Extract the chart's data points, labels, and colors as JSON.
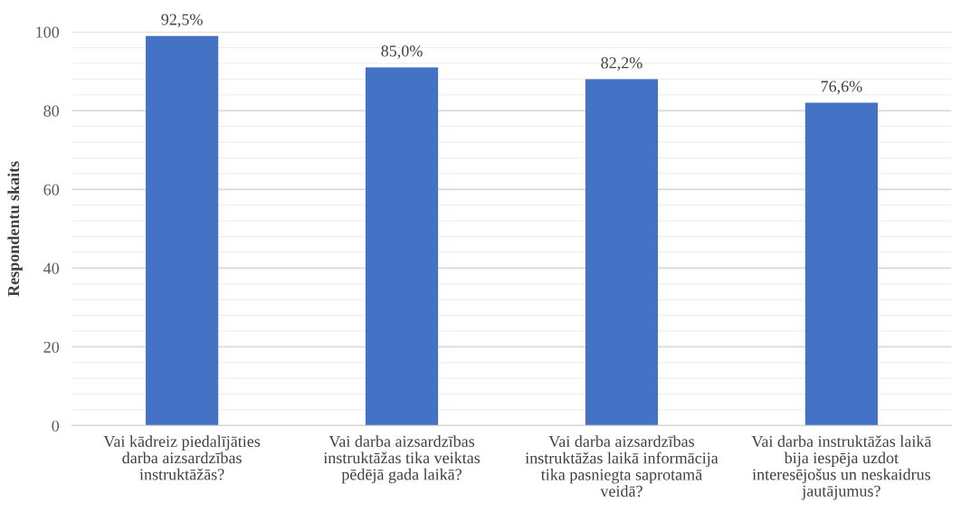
{
  "chart_data": {
    "type": "bar",
    "ylabel": "Respondentu skaits",
    "categories": [
      "Vai kādreiz piedalījāties darba aizsardzības instruktāžās?",
      "Vai darba aizsardzības instruktāžas tika veiktas pēdējā gada laikā?",
      "Vai darba aizsardzības instruktāžas laikā informācija tika pasniegta saprotamā veidā?",
      "Vai darba instruktāžas laikā bija iespēja uzdot interesējošus un neskaidrus jautājumus?"
    ],
    "values": [
      99,
      91,
      88,
      82
    ],
    "annotations": [
      {
        "text": "92,5%",
        "x": "Vai kādreiz piedalījāties darba aizsardzības instruktāžās?",
        "y": 99
      },
      {
        "text": "85,0%",
        "x": "Vai darba aizsardzības instruktāžas tika veiktas pēdējā gada laikā?",
        "y": 91
      },
      {
        "text": "82,2%",
        "x": "Vai darba aizsardzības instruktāžas laikā informācija tika pasniegta saprotamā veidā?",
        "y": 88
      },
      {
        "text": "76,6%",
        "x": "Vai darba instruktāžas laikā bija iespēja uzdot interesējošus un neskaidrus jautājumus?",
        "y": 82
      }
    ],
    "color": "#4472c4",
    "ylim": [
      0,
      100
    ],
    "yticks": [
      0,
      {
        "value": 4,
        "label": null
      },
      {
        "value": 8,
        "label": null
      },
      {
        "value": 12,
        "label": null
      },
      {
        "value": 16,
        "label": null
      },
      20,
      {
        "value": 24,
        "label": null
      },
      {
        "value": 28,
        "label": null
      },
      {
        "value": 32,
        "label": null
      },
      {
        "value": 36,
        "label": null
      },
      40,
      {
        "value": 44,
        "label": null
      },
      {
        "value": 48,
        "label": null
      },
      {
        "value": 52,
        "label": null
      },
      {
        "value": 56,
        "label": null
      },
      60,
      {
        "value": 64,
        "label": null
      },
      {
        "value": 68,
        "label": null
      },
      {
        "value": 72,
        "label": null
      },
      {
        "value": 76,
        "label": null
      },
      80,
      {
        "value": 84,
        "label": null
      },
      {
        "value": 88,
        "label": null
      },
      {
        "value": 92,
        "label": null
      },
      {
        "value": 96,
        "label": null
      },
      100
    ],
    "grid": "y"
  }
}
